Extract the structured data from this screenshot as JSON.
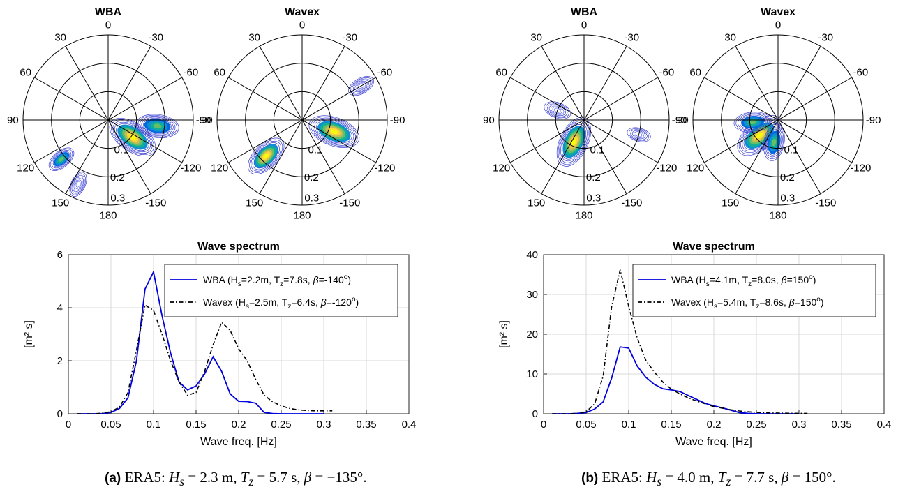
{
  "captions": [
    {
      "label": "(a)",
      "text_parts": [
        "ERA5: ",
        "H",
        "s",
        " = 2.3 m, ",
        "T",
        "z",
        " = 5.7 s, ",
        "β",
        " = −135°."
      ]
    },
    {
      "label": "(b)",
      "text_parts": [
        "ERA5: ",
        "H",
        "s",
        " = 4.0 m, ",
        "T",
        "z",
        " = 7.7 s, ",
        "β",
        " = 150°."
      ]
    }
  ],
  "colors": {
    "wba": "#0000dd",
    "wavex": "#000000",
    "grid": "#d9d9d9",
    "polar_axis": "#000000"
  },
  "chart_data": [
    {
      "type": "polar_contour",
      "panel": "a",
      "title": "WBA",
      "radial_ticks": [
        0.1,
        0.2,
        0.3
      ],
      "rmax": 0.3,
      "angle_ticks": [
        "180",
        "150",
        "120",
        "90",
        "60",
        "30",
        "0",
        "-30",
        "-60",
        "-90",
        "-120",
        "-150"
      ],
      "peaks": [
        {
          "angle_deg": -125,
          "r": 0.105,
          "strength": 1.0
        },
        {
          "angle_deg": -97,
          "r": 0.175,
          "strength": 0.75
        },
        {
          "angle_deg": 130,
          "r": 0.215,
          "strength": 0.4
        },
        {
          "angle_deg": 155,
          "r": 0.25,
          "strength": 0.3
        }
      ]
    },
    {
      "type": "polar_contour",
      "panel": "a",
      "title": "Wavex",
      "radial_ticks": [
        0.1,
        0.2,
        0.3
      ],
      "rmax": 0.3,
      "angle_ticks": [
        "180",
        "150",
        "120",
        "90",
        "60",
        "30",
        "0",
        "-30",
        "-60",
        "-90",
        "-120",
        "-150"
      ],
      "peaks": [
        {
          "angle_deg": -110,
          "r": 0.12,
          "strength": 1.0
        },
        {
          "angle_deg": 135,
          "r": 0.18,
          "strength": 0.8
        },
        {
          "angle_deg": -60,
          "r": 0.24,
          "strength": 0.35
        }
      ]
    },
    {
      "type": "polar_contour",
      "panel": "b",
      "title": "WBA",
      "radial_ticks": [
        0.1,
        0.2,
        0.3
      ],
      "rmax": 0.3,
      "angle_ticks": [
        "180",
        "150",
        "120",
        "90",
        "60",
        "30",
        "0",
        "-30",
        "-60",
        "-90",
        "-120",
        "-150"
      ],
      "peaks": [
        {
          "angle_deg": 155,
          "r": 0.085,
          "strength": 1.0
        },
        {
          "angle_deg": 70,
          "r": 0.1,
          "strength": 0.35
        },
        {
          "angle_deg": -105,
          "r": 0.2,
          "strength": 0.25
        }
      ]
    },
    {
      "type": "polar_contour",
      "panel": "b",
      "title": "Wavex",
      "radial_ticks": [
        0.1,
        0.2,
        0.3
      ],
      "rmax": 0.3,
      "angle_ticks": [
        "180",
        "150",
        "120",
        "90",
        "60",
        "30",
        "0",
        "-30",
        "-60",
        "-90",
        "-120",
        "-150"
      ],
      "peaks": [
        {
          "angle_deg": 130,
          "r": 0.085,
          "strength": 1.0
        },
        {
          "angle_deg": 170,
          "r": 0.08,
          "strength": 0.6
        },
        {
          "angle_deg": 95,
          "r": 0.09,
          "strength": 0.6
        }
      ]
    },
    {
      "type": "line",
      "panel": "a",
      "title": "Wave spectrum",
      "xlabel": "Wave freq. [Hz]",
      "ylabel": "[m² s]",
      "xlim": [
        0,
        0.4
      ],
      "ylim": [
        0,
        6
      ],
      "xticks": [
        0,
        0.05,
        0.1,
        0.15,
        0.2,
        0.25,
        0.3,
        0.35,
        0.4
      ],
      "yticks": [
        0,
        2,
        4,
        6
      ],
      "grid": true,
      "legend_position": "top-right",
      "series": [
        {
          "name": "WBA",
          "legend": [
            "WBA    (H",
            "s",
            "=2.2m, T",
            "z",
            "=7.8s, ",
            "β",
            "=-140",
            "o",
            ")"
          ],
          "style": "solid",
          "x": [
            0.01,
            0.02,
            0.03,
            0.04,
            0.05,
            0.06,
            0.07,
            0.08,
            0.09,
            0.1,
            0.11,
            0.12,
            0.13,
            0.14,
            0.15,
            0.16,
            0.17,
            0.18,
            0.19,
            0.2,
            0.21,
            0.22,
            0.23,
            0.24,
            0.25,
            0.26,
            0.27,
            0.28,
            0.29,
            0.3
          ],
          "y": [
            0,
            0,
            0,
            0.01,
            0.05,
            0.2,
            0.6,
            2.0,
            4.7,
            5.35,
            3.7,
            2.3,
            1.2,
            0.9,
            1.05,
            1.5,
            2.15,
            1.6,
            0.75,
            0.47,
            0.46,
            0.4,
            0.05,
            0.01,
            0,
            0,
            0,
            0,
            0,
            0
          ]
        },
        {
          "name": "Wavex",
          "legend": [
            "Wavex (H",
            "s",
            "=2.5m, T",
            "z",
            "=6.4s, ",
            "β",
            "=-120",
            "o",
            ")"
          ],
          "style": "dashdot",
          "x": [
            0.01,
            0.02,
            0.03,
            0.04,
            0.05,
            0.06,
            0.07,
            0.08,
            0.09,
            0.1,
            0.11,
            0.12,
            0.13,
            0.14,
            0.15,
            0.16,
            0.17,
            0.18,
            0.19,
            0.2,
            0.21,
            0.22,
            0.23,
            0.24,
            0.25,
            0.26,
            0.27,
            0.28,
            0.29,
            0.3,
            0.31
          ],
          "y": [
            0,
            0,
            0,
            0.02,
            0.08,
            0.25,
            0.8,
            2.4,
            4.1,
            3.9,
            3.0,
            2.0,
            1.2,
            0.7,
            0.8,
            1.6,
            2.6,
            3.45,
            3.15,
            2.45,
            2.0,
            1.3,
            0.7,
            0.45,
            0.3,
            0.2,
            0.15,
            0.12,
            0.11,
            0.11,
            0.11
          ]
        }
      ]
    },
    {
      "type": "line",
      "panel": "b",
      "title": "Wave spectrum",
      "xlabel": "Wave freq. [Hz]",
      "ylabel": "[m² s]",
      "xlim": [
        0,
        0.4
      ],
      "ylim": [
        0,
        40
      ],
      "xticks": [
        0,
        0.05,
        0.1,
        0.15,
        0.2,
        0.25,
        0.3,
        0.35,
        0.4
      ],
      "yticks": [
        0,
        10,
        20,
        30,
        40
      ],
      "grid": true,
      "legend_position": "top-right",
      "series": [
        {
          "name": "WBA",
          "legend": [
            "WBA    (H",
            "s",
            "=4.1m, T",
            "z",
            "=8.0s, ",
            "β",
            "=150",
            "o",
            ")"
          ],
          "style": "solid",
          "x": [
            0.01,
            0.02,
            0.03,
            0.04,
            0.05,
            0.06,
            0.07,
            0.08,
            0.09,
            0.1,
            0.11,
            0.12,
            0.13,
            0.14,
            0.15,
            0.16,
            0.17,
            0.18,
            0.19,
            0.2,
            0.21,
            0.22,
            0.23,
            0.24,
            0.25,
            0.26,
            0.27,
            0.28,
            0.29,
            0.3
          ],
          "y": [
            0,
            0,
            0,
            0.1,
            0.3,
            1.2,
            3.0,
            9.0,
            16.8,
            16.5,
            12.0,
            9.2,
            7.4,
            6.3,
            6.0,
            5.6,
            4.6,
            3.6,
            2.6,
            2.0,
            1.5,
            0.9,
            0.3,
            0.1,
            0,
            0,
            0,
            0,
            0,
            0
          ]
        },
        {
          "name": "Wavex",
          "legend": [
            "Wavex (H",
            "s",
            "=5.4m, T",
            "z",
            "=8.6s, ",
            "β",
            "=150",
            "o",
            ")"
          ],
          "style": "dashdot",
          "x": [
            0.01,
            0.02,
            0.03,
            0.04,
            0.05,
            0.06,
            0.07,
            0.08,
            0.09,
            0.1,
            0.11,
            0.12,
            0.13,
            0.14,
            0.15,
            0.16,
            0.17,
            0.18,
            0.19,
            0.2,
            0.21,
            0.22,
            0.23,
            0.24,
            0.25,
            0.26,
            0.27,
            0.28,
            0.29,
            0.3,
            0.31
          ],
          "y": [
            0,
            0,
            0,
            0.1,
            0.5,
            2.5,
            9.5,
            27.0,
            36.2,
            27.0,
            19.0,
            13.5,
            10.5,
            8.0,
            6.2,
            5.0,
            4.0,
            3.2,
            2.5,
            1.8,
            1.4,
            1.0,
            0.7,
            0.5,
            0.35,
            0.25,
            0.2,
            0.15,
            0.12,
            0.1,
            0.1
          ]
        }
      ]
    }
  ]
}
